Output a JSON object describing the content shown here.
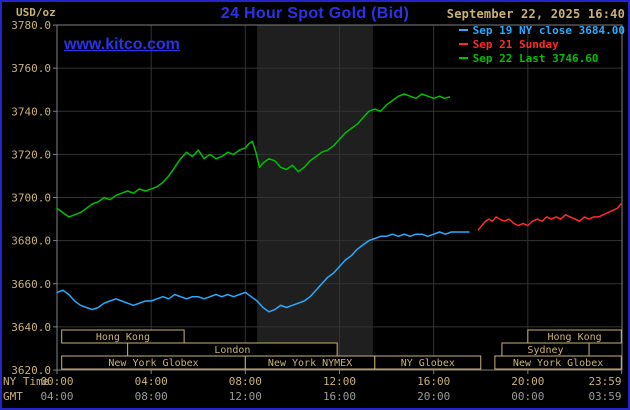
{
  "header": {
    "datetime": "September 22, 2025 16:40",
    "watermark": "www.kitco.com"
  },
  "colors": {
    "background": "#000000",
    "outer_border": "#2226c8",
    "title_blue": "#2b32e8",
    "tan": "#c8b273",
    "gmt_gray": "#9a9a9a",
    "frame": "#808080",
    "grid": "#333333",
    "band": "#1f1f1f",
    "cyan_series": "#29aaff",
    "red_series": "#ff2a2a",
    "green_series": "#00c000"
  },
  "chart_data": {
    "type": "line",
    "title": "24 Hour Spot Gold (Bid)",
    "ylabel": "USD/oz",
    "ylim": [
      3620,
      3780
    ],
    "y_ticks": [
      3780,
      3760,
      3740,
      3720,
      3700,
      3680,
      3660,
      3640,
      3620
    ],
    "xlim_hours": [
      0,
      24
    ],
    "grid": true,
    "legend_position": "top-right",
    "x_axis": {
      "ny_label": "NY Time",
      "gmt_label": "GMT",
      "tick_hours": [
        0,
        4,
        8,
        12,
        16,
        20,
        23.983
      ],
      "ny_ticks": [
        "00:00",
        "04:00",
        "08:00",
        "12:00",
        "16:00",
        "20:00",
        "23:59"
      ],
      "gmt_ticks": [
        "04:00",
        "08:00",
        "12:00",
        "16:00",
        "20:00",
        "00:00",
        "03:59"
      ]
    },
    "shaded_band_hours": [
      8.5,
      13.42
    ],
    "legend": [
      {
        "label": "Sep 19 NY close 3684.00",
        "color": "#29aaff"
      },
      {
        "label": "Sep 21 Sunday",
        "color": "#ff2a2a"
      },
      {
        "label": "Sep 22 Last 3746.60",
        "color": "#00c000"
      }
    ],
    "series": [
      {
        "id": "sep22-today",
        "name": "Sep 22 Last 3746.60",
        "color": "#00c000",
        "points": [
          [
            0,
            3695
          ],
          [
            0.25,
            3693
          ],
          [
            0.5,
            3691
          ],
          [
            0.75,
            3692
          ],
          [
            1,
            3693
          ],
          [
            1.25,
            3695
          ],
          [
            1.5,
            3697
          ],
          [
            1.75,
            3698
          ],
          [
            2,
            3700
          ],
          [
            2.25,
            3699
          ],
          [
            2.5,
            3701
          ],
          [
            2.75,
            3702
          ],
          [
            3,
            3703
          ],
          [
            3.25,
            3702
          ],
          [
            3.5,
            3704
          ],
          [
            3.75,
            3703
          ],
          [
            4,
            3704
          ],
          [
            4.25,
            3705
          ],
          [
            4.5,
            3707
          ],
          [
            4.75,
            3710
          ],
          [
            5,
            3714
          ],
          [
            5.25,
            3718
          ],
          [
            5.5,
            3721
          ],
          [
            5.75,
            3719
          ],
          [
            6,
            3722
          ],
          [
            6.25,
            3718
          ],
          [
            6.5,
            3720
          ],
          [
            6.75,
            3718
          ],
          [
            7,
            3719
          ],
          [
            7.25,
            3721
          ],
          [
            7.5,
            3720
          ],
          [
            7.75,
            3722
          ],
          [
            8,
            3723
          ],
          [
            8.15,
            3725
          ],
          [
            8.3,
            3726
          ],
          [
            8.45,
            3721
          ],
          [
            8.6,
            3714
          ],
          [
            8.75,
            3716
          ],
          [
            9,
            3718
          ],
          [
            9.25,
            3717
          ],
          [
            9.5,
            3714
          ],
          [
            9.75,
            3713
          ],
          [
            10,
            3715
          ],
          [
            10.25,
            3712
          ],
          [
            10.5,
            3714
          ],
          [
            10.75,
            3717
          ],
          [
            11,
            3719
          ],
          [
            11.25,
            3721
          ],
          [
            11.5,
            3722
          ],
          [
            11.75,
            3724
          ],
          [
            12,
            3727
          ],
          [
            12.25,
            3730
          ],
          [
            12.5,
            3732
          ],
          [
            12.75,
            3734
          ],
          [
            13,
            3737
          ],
          [
            13.25,
            3740
          ],
          [
            13.5,
            3741
          ],
          [
            13.75,
            3740
          ],
          [
            14,
            3743
          ],
          [
            14.25,
            3745
          ],
          [
            14.5,
            3747
          ],
          [
            14.75,
            3748
          ],
          [
            15,
            3747
          ],
          [
            15.25,
            3746
          ],
          [
            15.5,
            3748
          ],
          [
            15.75,
            3747
          ],
          [
            16,
            3746
          ],
          [
            16.25,
            3747
          ],
          [
            16.45,
            3746
          ],
          [
            16.67,
            3746.6
          ]
        ]
      },
      {
        "id": "sep19-ny-close",
        "name": "Sep 19 NY close 3684.00",
        "color": "#29aaff",
        "points": [
          [
            0,
            3656
          ],
          [
            0.25,
            3657
          ],
          [
            0.5,
            3655
          ],
          [
            0.75,
            3652
          ],
          [
            1,
            3650
          ],
          [
            1.25,
            3649
          ],
          [
            1.5,
            3648
          ],
          [
            1.75,
            3649
          ],
          [
            2,
            3651
          ],
          [
            2.25,
            3652
          ],
          [
            2.5,
            3653
          ],
          [
            2.75,
            3652
          ],
          [
            3,
            3651
          ],
          [
            3.25,
            3650
          ],
          [
            3.5,
            3651
          ],
          [
            3.75,
            3652
          ],
          [
            4,
            3652
          ],
          [
            4.25,
            3653
          ],
          [
            4.5,
            3654
          ],
          [
            4.75,
            3653
          ],
          [
            5,
            3655
          ],
          [
            5.25,
            3654
          ],
          [
            5.5,
            3653
          ],
          [
            5.75,
            3654
          ],
          [
            6,
            3654
          ],
          [
            6.25,
            3653
          ],
          [
            6.5,
            3654
          ],
          [
            6.75,
            3655
          ],
          [
            7,
            3654
          ],
          [
            7.25,
            3655
          ],
          [
            7.5,
            3654
          ],
          [
            7.75,
            3655
          ],
          [
            8,
            3656
          ],
          [
            8.25,
            3654
          ],
          [
            8.5,
            3652
          ],
          [
            8.75,
            3649
          ],
          [
            9,
            3647
          ],
          [
            9.25,
            3648
          ],
          [
            9.5,
            3650
          ],
          [
            9.75,
            3649
          ],
          [
            10,
            3650
          ],
          [
            10.25,
            3651
          ],
          [
            10.5,
            3652
          ],
          [
            10.75,
            3654
          ],
          [
            11,
            3657
          ],
          [
            11.25,
            3660
          ],
          [
            11.5,
            3663
          ],
          [
            11.75,
            3665
          ],
          [
            12,
            3668
          ],
          [
            12.25,
            3671
          ],
          [
            12.5,
            3673
          ],
          [
            12.75,
            3676
          ],
          [
            13,
            3678
          ],
          [
            13.25,
            3680
          ],
          [
            13.5,
            3681
          ],
          [
            13.75,
            3682
          ],
          [
            14,
            3682
          ],
          [
            14.25,
            3683
          ],
          [
            14.5,
            3682
          ],
          [
            14.75,
            3683
          ],
          [
            15,
            3682
          ],
          [
            15.25,
            3683
          ],
          [
            15.5,
            3683
          ],
          [
            15.75,
            3682
          ],
          [
            16,
            3683
          ],
          [
            16.25,
            3684
          ],
          [
            16.5,
            3683
          ],
          [
            16.75,
            3684
          ],
          [
            17,
            3684
          ],
          [
            17.5,
            3684
          ]
        ]
      },
      {
        "id": "sep21-sunday",
        "name": "Sep 21 Sunday",
        "color": "#ff2a2a",
        "points": [
          [
            17.9,
            3685
          ],
          [
            18.05,
            3687
          ],
          [
            18.2,
            3689
          ],
          [
            18.35,
            3690
          ],
          [
            18.5,
            3689
          ],
          [
            18.65,
            3691
          ],
          [
            18.8,
            3690
          ],
          [
            19,
            3689
          ],
          [
            19.2,
            3690
          ],
          [
            19.4,
            3688
          ],
          [
            19.6,
            3687
          ],
          [
            19.8,
            3688
          ],
          [
            20,
            3687
          ],
          [
            20.2,
            3689
          ],
          [
            20.4,
            3690
          ],
          [
            20.6,
            3689
          ],
          [
            20.8,
            3691
          ],
          [
            21,
            3690
          ],
          [
            21.2,
            3691
          ],
          [
            21.4,
            3690
          ],
          [
            21.6,
            3692
          ],
          [
            21.8,
            3691
          ],
          [
            22,
            3690
          ],
          [
            22.2,
            3689
          ],
          [
            22.4,
            3691
          ],
          [
            22.6,
            3690
          ],
          [
            22.8,
            3691
          ],
          [
            23,
            3691
          ],
          [
            23.2,
            3692
          ],
          [
            23.4,
            3693
          ],
          [
            23.6,
            3694
          ],
          [
            23.8,
            3695
          ],
          [
            23.95,
            3697
          ]
        ]
      }
    ],
    "sessions": [
      {
        "row": 0,
        "label": "Hong Kong",
        "start": 0.2,
        "end": 5.4
      },
      {
        "row": 0,
        "label": "Hong Kong",
        "start": 20.0,
        "end": 23.97
      },
      {
        "row": 1,
        "label": "London",
        "start": 3.0,
        "end": 11.9
      },
      {
        "row": 1,
        "label": "Sydney",
        "start": 18.9,
        "end": 22.6
      },
      {
        "row": 2,
        "label": "New York Globex",
        "start": 0.2,
        "end": 8.0
      },
      {
        "row": 2,
        "label": "New York NYMEX",
        "start": 8.0,
        "end": 13.5
      },
      {
        "row": 2,
        "label": "NY Globex",
        "start": 13.5,
        "end": 18.0
      },
      {
        "row": 2,
        "label": "New York Globex",
        "start": 18.6,
        "end": 23.97
      }
    ]
  }
}
